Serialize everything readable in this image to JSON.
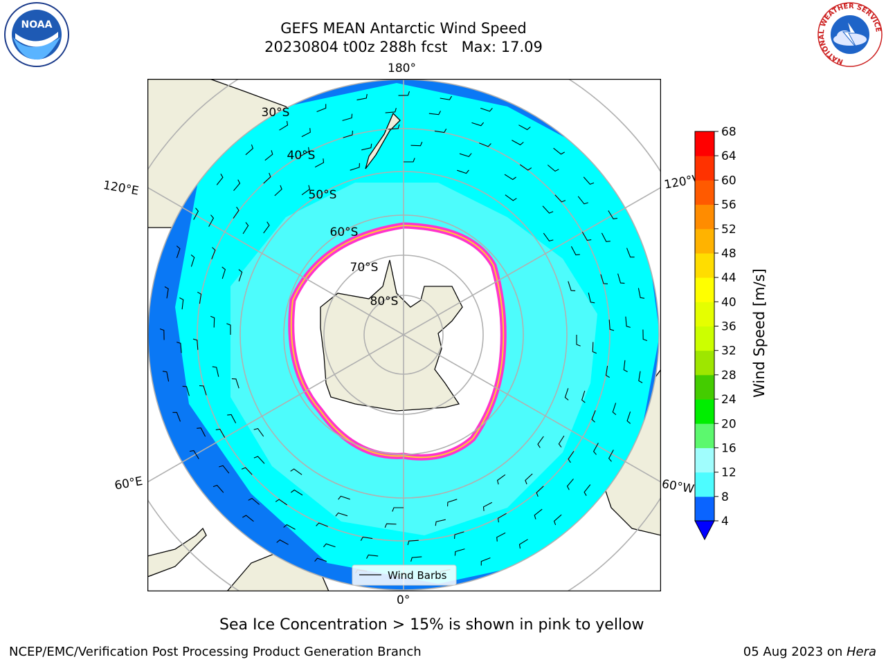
{
  "header": {
    "title_line1": "GEFS MEAN Antarctic Wind Speed",
    "title_line2": "20230804 t00z 288h fcst   Max: 17.09"
  },
  "logos": {
    "left_text": "NOAA",
    "right_ring_text": "NATIONAL WEATHER SERVICE"
  },
  "map": {
    "longitude_labels": {
      "top": "180°",
      "bottom": "0°",
      "upper_left": "120°E",
      "upper_right": "120°W",
      "lower_left": "60°E",
      "lower_right": "60°W"
    },
    "latitude_labels": [
      "30°S",
      "40°S",
      "50°S",
      "60°S",
      "70°S",
      "80°S"
    ],
    "legend_label": "Wind Barbs",
    "colors": {
      "land": "#efeedc",
      "ocean_4_8": "#0a78f5",
      "ocean_8_12": "#00ffff",
      "ocean_12_16": "#4dfcfc",
      "ice_white": "#ffffff",
      "sea_ice_edge": "#ff33cc",
      "grid": "#b0b0b0"
    }
  },
  "colorbar": {
    "label": "Wind Speed [m/s]",
    "ticks": [
      "4",
      "8",
      "12",
      "16",
      "20",
      "24",
      "28",
      "32",
      "36",
      "40",
      "44",
      "48",
      "52",
      "56",
      "60",
      "64",
      "68"
    ],
    "colors": [
      "#0a64ff",
      "#00ffff",
      "#4dfcff",
      "#a0fdfd",
      "#5cf86e",
      "#00ee00",
      "#44cc00",
      "#9ee600",
      "#ccff00",
      "#e5ff00",
      "#ffff00",
      "#ffdd00",
      "#ffb300",
      "#ff8c00",
      "#ff5a00",
      "#ff3200",
      "#ff0000"
    ],
    "extend_color": "#0000ff"
  },
  "caption": "Sea Ice Concentration > 15% is shown in pink to yellow",
  "footer": {
    "left": "NCEP/EMC/Verification Post Processing Product Generation Branch",
    "right_date": "05 Aug 2023 on ",
    "right_host": "Hera"
  }
}
